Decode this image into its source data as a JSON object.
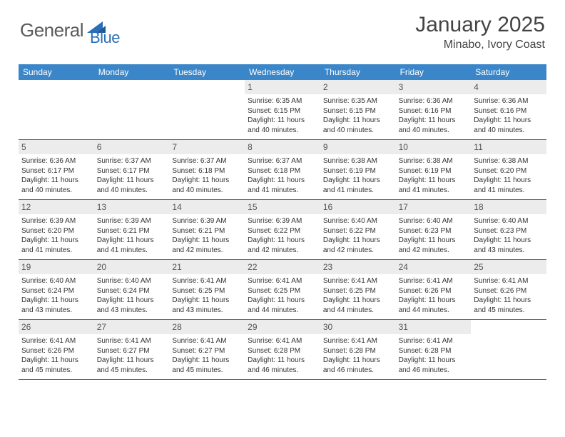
{
  "logo": {
    "text1": "General",
    "text2": "Blue"
  },
  "title": "January 2025",
  "location": "Minabo, Ivory Coast",
  "colors": {
    "header_bg": "#3b86c8",
    "daynum_bg": "#ececec",
    "week_border": "#3b6fa0",
    "logo_gray": "#5a5a5a",
    "logo_blue": "#2a6fb5"
  },
  "weekdays": [
    "Sunday",
    "Monday",
    "Tuesday",
    "Wednesday",
    "Thursday",
    "Friday",
    "Saturday"
  ],
  "weeks": [
    [
      {
        "empty": true
      },
      {
        "empty": true
      },
      {
        "empty": true
      },
      {
        "day": "1",
        "sunrise": "Sunrise: 6:35 AM",
        "sunset": "Sunset: 6:15 PM",
        "daylight1": "Daylight: 11 hours",
        "daylight2": "and 40 minutes."
      },
      {
        "day": "2",
        "sunrise": "Sunrise: 6:35 AM",
        "sunset": "Sunset: 6:15 PM",
        "daylight1": "Daylight: 11 hours",
        "daylight2": "and 40 minutes."
      },
      {
        "day": "3",
        "sunrise": "Sunrise: 6:36 AM",
        "sunset": "Sunset: 6:16 PM",
        "daylight1": "Daylight: 11 hours",
        "daylight2": "and 40 minutes."
      },
      {
        "day": "4",
        "sunrise": "Sunrise: 6:36 AM",
        "sunset": "Sunset: 6:16 PM",
        "daylight1": "Daylight: 11 hours",
        "daylight2": "and 40 minutes."
      }
    ],
    [
      {
        "day": "5",
        "sunrise": "Sunrise: 6:36 AM",
        "sunset": "Sunset: 6:17 PM",
        "daylight1": "Daylight: 11 hours",
        "daylight2": "and 40 minutes."
      },
      {
        "day": "6",
        "sunrise": "Sunrise: 6:37 AM",
        "sunset": "Sunset: 6:17 PM",
        "daylight1": "Daylight: 11 hours",
        "daylight2": "and 40 minutes."
      },
      {
        "day": "7",
        "sunrise": "Sunrise: 6:37 AM",
        "sunset": "Sunset: 6:18 PM",
        "daylight1": "Daylight: 11 hours",
        "daylight2": "and 40 minutes."
      },
      {
        "day": "8",
        "sunrise": "Sunrise: 6:37 AM",
        "sunset": "Sunset: 6:18 PM",
        "daylight1": "Daylight: 11 hours",
        "daylight2": "and 41 minutes."
      },
      {
        "day": "9",
        "sunrise": "Sunrise: 6:38 AM",
        "sunset": "Sunset: 6:19 PM",
        "daylight1": "Daylight: 11 hours",
        "daylight2": "and 41 minutes."
      },
      {
        "day": "10",
        "sunrise": "Sunrise: 6:38 AM",
        "sunset": "Sunset: 6:19 PM",
        "daylight1": "Daylight: 11 hours",
        "daylight2": "and 41 minutes."
      },
      {
        "day": "11",
        "sunrise": "Sunrise: 6:38 AM",
        "sunset": "Sunset: 6:20 PM",
        "daylight1": "Daylight: 11 hours",
        "daylight2": "and 41 minutes."
      }
    ],
    [
      {
        "day": "12",
        "sunrise": "Sunrise: 6:39 AM",
        "sunset": "Sunset: 6:20 PM",
        "daylight1": "Daylight: 11 hours",
        "daylight2": "and 41 minutes."
      },
      {
        "day": "13",
        "sunrise": "Sunrise: 6:39 AM",
        "sunset": "Sunset: 6:21 PM",
        "daylight1": "Daylight: 11 hours",
        "daylight2": "and 41 minutes."
      },
      {
        "day": "14",
        "sunrise": "Sunrise: 6:39 AM",
        "sunset": "Sunset: 6:21 PM",
        "daylight1": "Daylight: 11 hours",
        "daylight2": "and 42 minutes."
      },
      {
        "day": "15",
        "sunrise": "Sunrise: 6:39 AM",
        "sunset": "Sunset: 6:22 PM",
        "daylight1": "Daylight: 11 hours",
        "daylight2": "and 42 minutes."
      },
      {
        "day": "16",
        "sunrise": "Sunrise: 6:40 AM",
        "sunset": "Sunset: 6:22 PM",
        "daylight1": "Daylight: 11 hours",
        "daylight2": "and 42 minutes."
      },
      {
        "day": "17",
        "sunrise": "Sunrise: 6:40 AM",
        "sunset": "Sunset: 6:23 PM",
        "daylight1": "Daylight: 11 hours",
        "daylight2": "and 42 minutes."
      },
      {
        "day": "18",
        "sunrise": "Sunrise: 6:40 AM",
        "sunset": "Sunset: 6:23 PM",
        "daylight1": "Daylight: 11 hours",
        "daylight2": "and 43 minutes."
      }
    ],
    [
      {
        "day": "19",
        "sunrise": "Sunrise: 6:40 AM",
        "sunset": "Sunset: 6:24 PM",
        "daylight1": "Daylight: 11 hours",
        "daylight2": "and 43 minutes."
      },
      {
        "day": "20",
        "sunrise": "Sunrise: 6:40 AM",
        "sunset": "Sunset: 6:24 PM",
        "daylight1": "Daylight: 11 hours",
        "daylight2": "and 43 minutes."
      },
      {
        "day": "21",
        "sunrise": "Sunrise: 6:41 AM",
        "sunset": "Sunset: 6:25 PM",
        "daylight1": "Daylight: 11 hours",
        "daylight2": "and 43 minutes."
      },
      {
        "day": "22",
        "sunrise": "Sunrise: 6:41 AM",
        "sunset": "Sunset: 6:25 PM",
        "daylight1": "Daylight: 11 hours",
        "daylight2": "and 44 minutes."
      },
      {
        "day": "23",
        "sunrise": "Sunrise: 6:41 AM",
        "sunset": "Sunset: 6:25 PM",
        "daylight1": "Daylight: 11 hours",
        "daylight2": "and 44 minutes."
      },
      {
        "day": "24",
        "sunrise": "Sunrise: 6:41 AM",
        "sunset": "Sunset: 6:26 PM",
        "daylight1": "Daylight: 11 hours",
        "daylight2": "and 44 minutes."
      },
      {
        "day": "25",
        "sunrise": "Sunrise: 6:41 AM",
        "sunset": "Sunset: 6:26 PM",
        "daylight1": "Daylight: 11 hours",
        "daylight2": "and 45 minutes."
      }
    ],
    [
      {
        "day": "26",
        "sunrise": "Sunrise: 6:41 AM",
        "sunset": "Sunset: 6:26 PM",
        "daylight1": "Daylight: 11 hours",
        "daylight2": "and 45 minutes."
      },
      {
        "day": "27",
        "sunrise": "Sunrise: 6:41 AM",
        "sunset": "Sunset: 6:27 PM",
        "daylight1": "Daylight: 11 hours",
        "daylight2": "and 45 minutes."
      },
      {
        "day": "28",
        "sunrise": "Sunrise: 6:41 AM",
        "sunset": "Sunset: 6:27 PM",
        "daylight1": "Daylight: 11 hours",
        "daylight2": "and 45 minutes."
      },
      {
        "day": "29",
        "sunrise": "Sunrise: 6:41 AM",
        "sunset": "Sunset: 6:28 PM",
        "daylight1": "Daylight: 11 hours",
        "daylight2": "and 46 minutes."
      },
      {
        "day": "30",
        "sunrise": "Sunrise: 6:41 AM",
        "sunset": "Sunset: 6:28 PM",
        "daylight1": "Daylight: 11 hours",
        "daylight2": "and 46 minutes."
      },
      {
        "day": "31",
        "sunrise": "Sunrise: 6:41 AM",
        "sunset": "Sunset: 6:28 PM",
        "daylight1": "Daylight: 11 hours",
        "daylight2": "and 46 minutes."
      },
      {
        "empty": true
      }
    ]
  ]
}
